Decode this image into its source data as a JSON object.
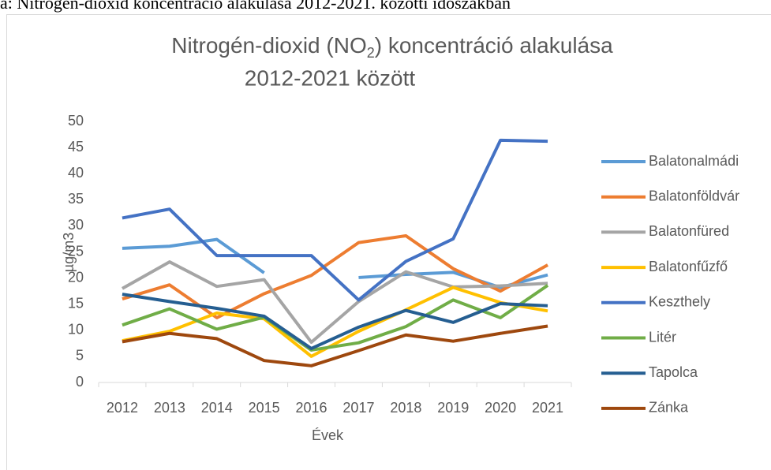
{
  "caption": "a: Nitrogén-dioxid koncentráció alakulása 2012-2021. közötti időszakban",
  "chart_data": {
    "type": "line",
    "title": {
      "line1": [
        "Nitrogén-dioxid (NO",
        "2",
        ") koncentráció alakulása"
      ],
      "line2": "2012-2021 között"
    },
    "x_label": "Évek",
    "y_label": "µg/m3",
    "categories": [
      "2012",
      "2013",
      "2014",
      "2015",
      "2016",
      "2017",
      "2018",
      "2019",
      "2020",
      "2021"
    ],
    "ylim": [
      0,
      50
    ],
    "yticks": [
      0,
      5,
      10,
      15,
      20,
      25,
      30,
      35,
      40,
      45,
      50
    ],
    "grid": false,
    "legend": "right",
    "series": [
      {
        "name": "Balatonalmádi",
        "color": "#5b9bd5",
        "values": [
          25.7,
          26.1,
          27.4,
          21,
          null,
          20.1,
          20.7,
          21.1,
          18.2,
          20.6
        ]
      },
      {
        "name": "Balatonföldvár",
        "color": "#ed7d31",
        "values": [
          16,
          18.7,
          12.4,
          17,
          20.5,
          26.8,
          28.1,
          21.8,
          17.5,
          22.5
        ]
      },
      {
        "name": "Balatonfüred",
        "color": "#a5a5a5",
        "values": [
          18,
          23.1,
          18.4,
          19.7,
          7.7,
          15.5,
          21.2,
          18.3,
          18.5,
          19
        ]
      },
      {
        "name": "Balatonfűzfő",
        "color": "#ffc000",
        "values": [
          8,
          9.8,
          13.3,
          12.2,
          5,
          9.8,
          13.9,
          18.2,
          15.3,
          13.7
        ]
      },
      {
        "name": "Keszthely",
        "color": "#4472c4",
        "values": [
          31.5,
          33.2,
          24.3,
          24.3,
          24.3,
          15.8,
          23.2,
          27.5,
          46.4,
          46.2
        ]
      },
      {
        "name": "Litér",
        "color": "#70ad47",
        "values": [
          11,
          14.1,
          10.2,
          12.5,
          6.2,
          7.6,
          10.7,
          15.8,
          12.4,
          18.6
        ]
      },
      {
        "name": "Tapolca",
        "color": "#255e91",
        "values": [
          16.9,
          15.5,
          14.2,
          12.7,
          6.5,
          10.6,
          13.8,
          11.5,
          15.1,
          14.7
        ]
      },
      {
        "name": "Zánka",
        "color": "#9e480e",
        "values": [
          7.8,
          9.4,
          8.4,
          4.2,
          3.2,
          6.1,
          9.1,
          7.9,
          9.4,
          10.8
        ]
      }
    ]
  }
}
